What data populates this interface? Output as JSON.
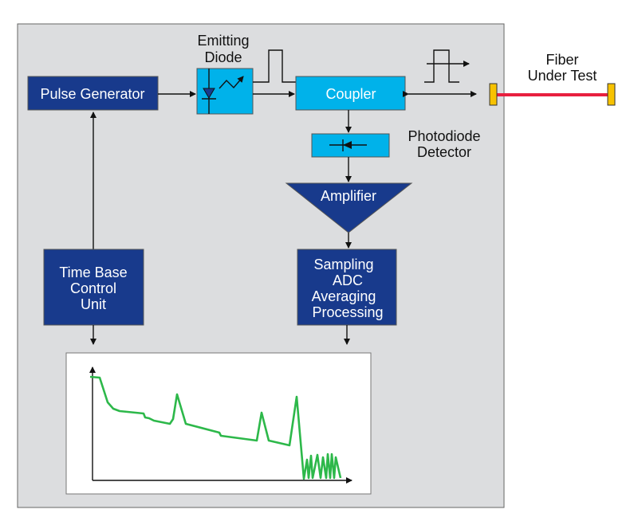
{
  "colors": {
    "panel": "#dcdddf",
    "dark_block": "#183a8c",
    "light_block": "#00b2ea",
    "trace": "#2db84a",
    "fiber": "#e8203f",
    "connector": "#f7c200"
  },
  "blocks": {
    "pulse_generator": "Pulse Generator",
    "emitting_diode": [
      "Emitting",
      "Diode"
    ],
    "coupler": "Coupler",
    "photodiode_detector": [
      "Photodiode",
      "Detector"
    ],
    "amplifier": "Amplifier",
    "sampling": [
      "Sampling",
      "ADC",
      "Averaging",
      "Processing"
    ],
    "time_base": [
      "Time Base",
      "Control",
      "Unit"
    ],
    "fiber": [
      "Fiber",
      "Under Test"
    ]
  }
}
